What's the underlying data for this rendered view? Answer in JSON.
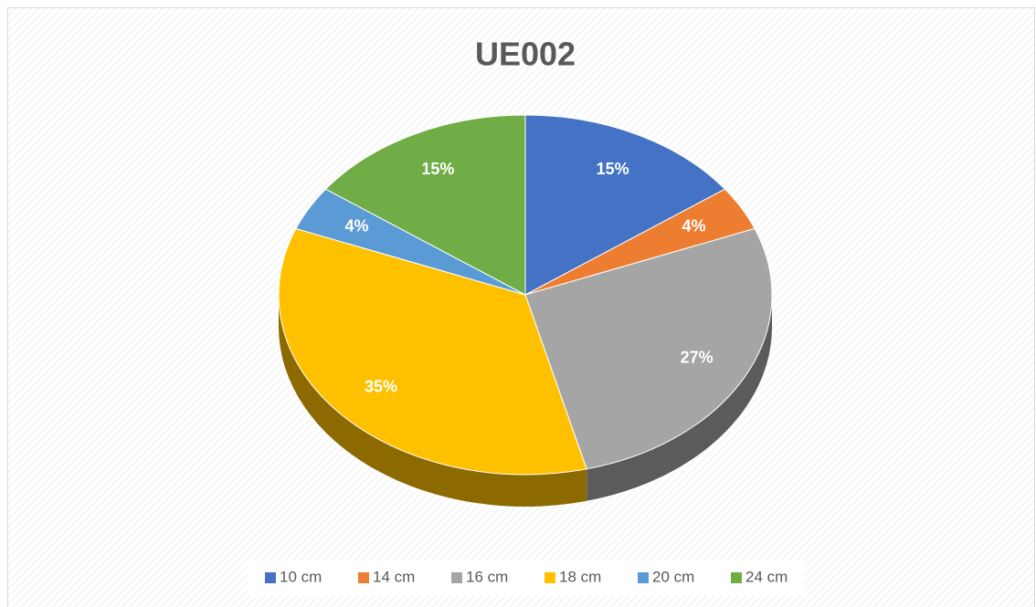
{
  "chart_data": {
    "type": "pie",
    "title": "UE002",
    "categories": [
      "10 cm",
      "14 cm",
      "16 cm",
      "18 cm",
      "20 cm",
      "24 cm"
    ],
    "values": [
      15,
      4,
      27,
      35,
      4,
      15
    ],
    "value_labels": [
      "15%",
      "4%",
      "27%",
      "35%",
      "4%",
      "15%"
    ],
    "colors": [
      "#4472c4",
      "#ed7d31",
      "#a5a5a5",
      "#ffc000",
      "#5b9bd5",
      "#70ad47"
    ],
    "legend": "bottom"
  }
}
